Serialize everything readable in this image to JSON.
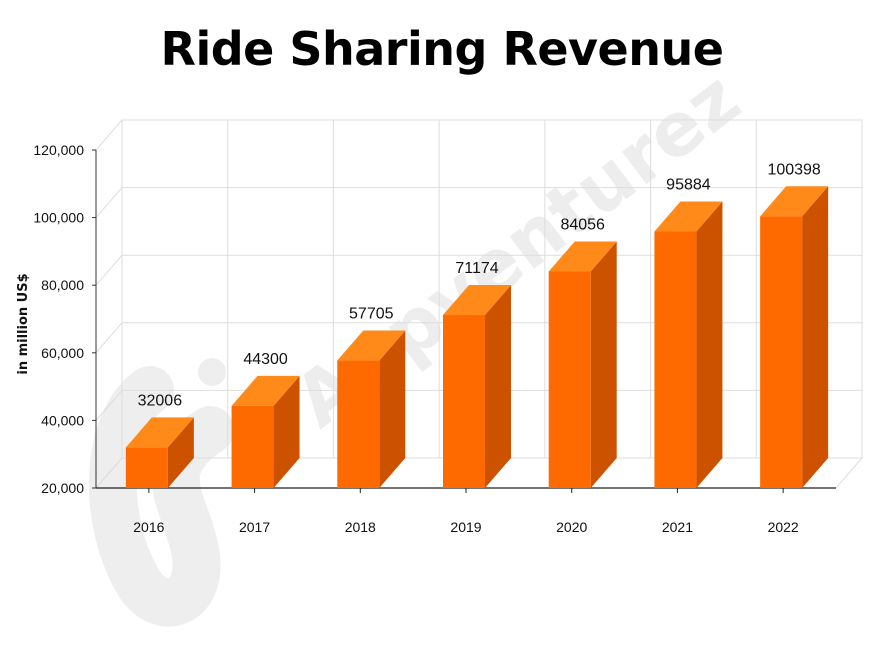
{
  "chart_data": {
    "type": "bar",
    "title": "Ride Sharing Revenue",
    "xlabel": "",
    "ylabel": "in million US$",
    "categories": [
      "2016",
      "2017",
      "2018",
      "2019",
      "2020",
      "2021",
      "2022"
    ],
    "values": [
      32006,
      44300,
      57705,
      71174,
      84056,
      95884,
      100398
    ],
    "data_labels": [
      "32006",
      "44300",
      "57705",
      "71174",
      "84056",
      "95884",
      "100398"
    ],
    "ylim": [
      20000,
      120000
    ],
    "y_ticks": [
      20000,
      40000,
      60000,
      80000,
      100000,
      120000
    ],
    "y_tick_labels": [
      "20,000",
      "40,000",
      "60,000",
      "80,000",
      "100,000",
      "120,000"
    ],
    "grid": true,
    "style": "3d-column",
    "colors": {
      "bar_front": "#ff6a00",
      "bar_side": "#cc5200",
      "bar_top": "#ff8a1a",
      "grid": "#dddddd"
    }
  },
  "watermark": {
    "text": "Appventurez"
  }
}
